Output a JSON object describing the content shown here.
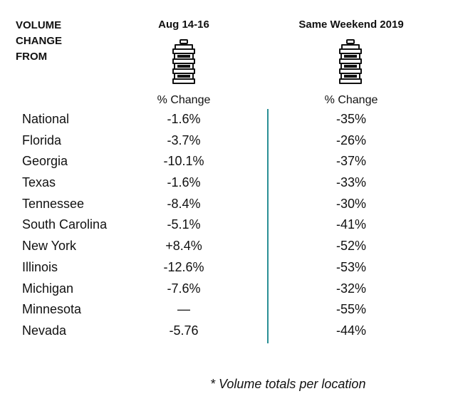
{
  "header": {
    "corner_label": "VOLUME\nCHANGE\nFROM",
    "col1_title": "Aug 14-16",
    "col2_title": "Same Weekend 2019",
    "col1_subtitle": "% Change",
    "col2_subtitle": "% Change",
    "icon": "beer-keg-icon"
  },
  "rows": [
    {
      "state": "National",
      "aug": "-1.6%",
      "prior": "-35%"
    },
    {
      "state": "Florida",
      "aug": "-3.7%",
      "prior": "-26%"
    },
    {
      "state": "Georgia",
      "aug": "-10.1%",
      "prior": "-37%"
    },
    {
      "state": "Texas",
      "aug": "-1.6%",
      "prior": "-33%"
    },
    {
      "state": "Tennessee",
      "aug": "-8.4%",
      "prior": "-30%"
    },
    {
      "state": "South Carolina",
      "aug": "-5.1%",
      "prior": "-41%"
    },
    {
      "state": "New York",
      "aug": "+8.4%",
      "prior": "-52%"
    },
    {
      "state": "Illinois",
      "aug": "-12.6%",
      "prior": "-53%"
    },
    {
      "state": "Michigan",
      "aug": "-7.6%",
      "prior": "-32%"
    },
    {
      "state": "Minnesota",
      "aug": "—",
      "prior": "-55%"
    },
    {
      "state": "Nevada",
      "aug": "-5.76",
      "prior": "-44%"
    }
  ],
  "footnote": "* Volume totals per location",
  "colors": {
    "divider": "#2a8f95",
    "text": "#111111"
  }
}
